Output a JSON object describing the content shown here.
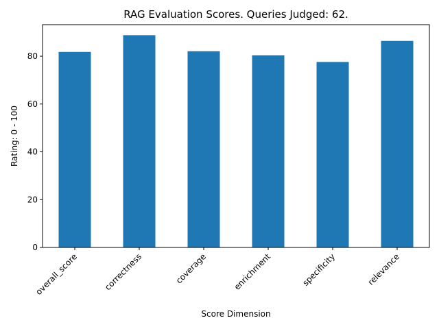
{
  "chart_data": {
    "type": "bar",
    "title": "RAG Evaluation Scores. Queries Judged: 62.",
    "xlabel": "Score Dimension",
    "ylabel": "Rating:  0 - 100",
    "categories": [
      "overall_score",
      "correctness",
      "coverage",
      "enrichment",
      "specificity",
      "relevance"
    ],
    "values": [
      81.8,
      88.8,
      82.1,
      80.4,
      77.6,
      86.4
    ],
    "ylim": [
      0,
      93.2
    ],
    "yticks": [
      0,
      20,
      40,
      60,
      80
    ],
    "bar_color": "#1f77b4",
    "grid": false,
    "legend": "none"
  }
}
